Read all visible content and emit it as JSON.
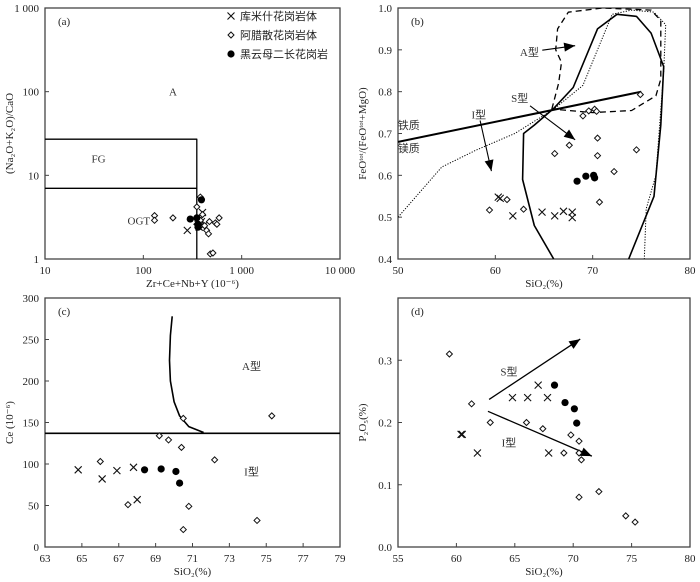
{
  "legend": {
    "entries": [
      {
        "label": "库米什花岗岩体",
        "marker": "cross"
      },
      {
        "label": "阿腊散花岗岩体",
        "marker": "diamond"
      },
      {
        "label": "黑云母二长花岗岩",
        "marker": "dot"
      }
    ]
  },
  "chart_data": [
    {
      "id": "a",
      "type": "scatter",
      "panel_label": "(a)",
      "xlabel": "Zr+Ce+Nb+Y (10⁻⁶)",
      "ylabel": "(Na₂O+K₂O)/CaO",
      "xscale": "log",
      "yscale": "log",
      "xlim": [
        10,
        10000
      ],
      "ylim": [
        1,
        1000
      ],
      "xticks": [
        {
          "v": 10,
          "label": "10"
        },
        {
          "v": 100,
          "label": "100"
        },
        {
          "v": 1000,
          "label": "1 000"
        },
        {
          "v": 10000,
          "label": "10 000"
        }
      ],
      "yticks": [
        {
          "v": 1,
          "label": "1"
        },
        {
          "v": 10,
          "label": "10"
        },
        {
          "v": 100,
          "label": "100"
        },
        {
          "v": 1000,
          "label": "1 000"
        }
      ],
      "regions": [
        {
          "label": "A",
          "x": 200,
          "y": 100
        },
        {
          "label": "FG",
          "x": 35,
          "y": 16
        },
        {
          "label": "OGT",
          "x": 90,
          "y": 2.9
        }
      ],
      "boundaries": [
        {
          "points": [
            [
              10,
              27
            ],
            [
              350,
              27
            ],
            [
              350,
              1
            ]
          ]
        },
        {
          "points": [
            [
              10,
              7
            ],
            [
              350,
              7
            ]
          ]
        }
      ],
      "series": [
        {
          "name": "库米什花岗岩体",
          "marker": "cross",
          "points": [
            [
              280,
              2.2
            ],
            [
              360,
              2.6
            ],
            [
              380,
              3.0
            ],
            [
              400,
              3.6
            ],
            [
              370,
              2.4
            ],
            [
              390,
              2.8
            ],
            [
              410,
              2.5
            ]
          ]
        },
        {
          "name": "阿腊散花岗岩体",
          "marker": "diamond",
          "points": [
            [
              130,
              3.3
            ],
            [
              130,
              2.9
            ],
            [
              200,
              3.1
            ],
            [
              350,
              4.2
            ],
            [
              380,
              5.5
            ],
            [
              400,
              3.4
            ],
            [
              420,
              2.5
            ],
            [
              440,
              2.2
            ],
            [
              460,
              2.0
            ],
            [
              470,
              2.8
            ],
            [
              540,
              2.7
            ],
            [
              560,
              2.6
            ],
            [
              590,
              3.1
            ],
            [
              480,
              1.15
            ],
            [
              510,
              1.18
            ],
            [
              350,
              2.6
            ],
            [
              380,
              2.9
            ]
          ]
        },
        {
          "name": "黑云母二长花岗岩",
          "marker": "dot",
          "points": [
            [
              300,
              3.0
            ],
            [
              350,
              3.1
            ],
            [
              360,
              2.6
            ],
            [
              360,
              2.4
            ],
            [
              390,
              5.1
            ]
          ]
        }
      ]
    },
    {
      "id": "b",
      "type": "scatter",
      "panel_label": "(b)",
      "xlabel": "SiO₂(%)",
      "ylabel": "FeOᵗᵒᵗ/(FeOᵗᵒᵗ+MgO)",
      "xlim": [
        50,
        80
      ],
      "ylim": [
        0.4,
        1.0
      ],
      "xticks": [
        {
          "v": 50,
          "label": "50"
        },
        {
          "v": 60,
          "label": "60"
        },
        {
          "v": 70,
          "label": "70"
        },
        {
          "v": 80,
          "label": "80"
        }
      ],
      "yticks": [
        {
          "v": 0.4,
          "label": "0.4"
        },
        {
          "v": 0.5,
          "label": "0.5"
        },
        {
          "v": 0.6,
          "label": "0.6"
        },
        {
          "v": 0.7,
          "label": "0.7"
        },
        {
          "v": 0.8,
          "label": "0.8"
        },
        {
          "v": 0.9,
          "label": "0.9"
        },
        {
          "v": 1.0,
          "label": "1.0"
        }
      ],
      "regions": [
        {
          "label": "A型",
          "x": 63.5,
          "y": 0.895,
          "arrow_to": [
            68.2,
            0.91
          ]
        },
        {
          "label": "S型",
          "x": 62.5,
          "y": 0.785,
          "arrow_to": [
            68.2,
            0.685
          ]
        },
        {
          "label": "I型",
          "x": 58.3,
          "y": 0.745,
          "arrow_to": [
            59.6,
            0.61
          ]
        },
        {
          "label": "铁质",
          "x": 51.1,
          "y": 0.72
        },
        {
          "label": "镁质",
          "x": 51.1,
          "y": 0.665
        }
      ],
      "boundaries": [
        {
          "name": "ferroan-magnesian",
          "style": "solid-thick",
          "points": [
            [
              50,
              0.68
            ],
            [
              75,
              0.8
            ]
          ]
        },
        {
          "name": "A-type field",
          "style": "dashed",
          "points": [
            [
              65.8,
              0.758
            ],
            [
              66.5,
              0.82
            ],
            [
              66.8,
              0.87
            ],
            [
              66.2,
              0.9
            ],
            [
              66.4,
              0.95
            ],
            [
              67.5,
              0.99
            ],
            [
              71,
              1.0
            ],
            [
              76,
              0.995
            ],
            [
              77,
              0.97
            ],
            [
              77,
              0.83
            ],
            [
              76.5,
              0.79
            ],
            [
              74,
              0.755
            ],
            [
              70,
              0.75
            ],
            [
              66,
              0.758
            ]
          ]
        },
        {
          "name": "I-type field",
          "style": "solid",
          "points": [
            [
              66,
              0.4
            ],
            [
              64,
              0.48
            ],
            [
              62.8,
              0.59
            ],
            [
              62.9,
              0.7
            ],
            [
              64,
              0.72
            ],
            [
              66,
              0.76
            ],
            [
              68,
              0.81
            ],
            [
              70.5,
              0.95
            ],
            [
              72.5,
              0.985
            ],
            [
              74.5,
              0.98
            ],
            [
              76,
              0.94
            ],
            [
              77.3,
              0.86
            ],
            [
              77,
              0.72
            ],
            [
              76.3,
              0.55
            ],
            [
              73.7,
              0.4
            ]
          ]
        },
        {
          "name": "S-type field",
          "style": "dotted",
          "points": [
            [
              50,
              0.5
            ],
            [
              54.5,
              0.62
            ],
            [
              58,
              0.66
            ],
            [
              62,
              0.7
            ],
            [
              66,
              0.758
            ],
            [
              69,
              0.815
            ],
            [
              72,
              0.985
            ],
            [
              74,
              0.995
            ],
            [
              76.3,
              0.99
            ],
            [
              77.5,
              0.96
            ],
            [
              77.3,
              0.85
            ],
            [
              76.5,
              0.6
            ],
            [
              75.5,
              0.52
            ],
            [
              75.3,
              0.4
            ]
          ]
        }
      ],
      "series": [
        {
          "name": "库米什花岗岩体",
          "marker": "cross",
          "points": [
            [
              60.3,
              0.548
            ],
            [
              60.5,
              0.545
            ],
            [
              61.8,
              0.503
            ],
            [
              64.8,
              0.512
            ],
            [
              66.1,
              0.503
            ],
            [
              67,
              0.514
            ],
            [
              67.9,
              0.512
            ],
            [
              67.9,
              0.499
            ]
          ]
        },
        {
          "name": "阿腊散花岗岩体",
          "marker": "diamond",
          "points": [
            [
              59.4,
              0.517
            ],
            [
              61.2,
              0.542
            ],
            [
              62.9,
              0.519
            ],
            [
              66.1,
              0.652
            ],
            [
              67.6,
              0.672
            ],
            [
              69,
              0.742
            ],
            [
              69.6,
              0.754
            ],
            [
              70.2,
              0.758
            ],
            [
              70.5,
              0.689
            ],
            [
              70.5,
              0.647
            ],
            [
              70.7,
              0.536
            ],
            [
              72.2,
              0.609
            ],
            [
              74.5,
              0.661
            ],
            [
              74.9,
              0.793
            ],
            [
              70.4,
              0.753
            ]
          ]
        },
        {
          "name": "黑云母二长花岗岩",
          "marker": "dot",
          "points": [
            [
              68.4,
              0.586
            ],
            [
              69.3,
              0.598
            ],
            [
              70.1,
              0.6
            ],
            [
              70.2,
              0.594
            ]
          ]
        }
      ]
    },
    {
      "id": "c",
      "type": "scatter",
      "panel_label": "(c)",
      "xlabel": "SiO₂(%)",
      "ylabel": "Ce (10⁻⁶)",
      "xlim": [
        63,
        79
      ],
      "ylim": [
        0,
        300
      ],
      "xticks": [
        {
          "v": 63,
          "label": "63"
        },
        {
          "v": 65,
          "label": "65"
        },
        {
          "v": 67,
          "label": "67"
        },
        {
          "v": 69,
          "label": "69"
        },
        {
          "v": 71,
          "label": "71"
        },
        {
          "v": 73,
          "label": "73"
        },
        {
          "v": 75,
          "label": "75"
        },
        {
          "v": 77,
          "label": "77"
        },
        {
          "v": 79,
          "label": "79"
        }
      ],
      "yticks": [
        {
          "v": 0,
          "label": "0"
        },
        {
          "v": 50,
          "label": "50"
        },
        {
          "v": 100,
          "label": "100"
        },
        {
          "v": 150,
          "label": "150"
        },
        {
          "v": 200,
          "label": "200"
        },
        {
          "v": 250,
          "label": "250"
        },
        {
          "v": 300,
          "label": "300"
        }
      ],
      "regions": [
        {
          "label": "A型",
          "x": 74.2,
          "y": 218
        },
        {
          "label": "I型",
          "x": 74.2,
          "y": 91
        }
      ],
      "boundaries": [
        {
          "style": "solid",
          "points": [
            [
              63,
              137
            ],
            [
              79,
              137
            ]
          ]
        },
        {
          "style": "solid",
          "points": [
            [
              69.9,
              278
            ],
            [
              69.8,
              255
            ],
            [
              69.75,
              225
            ],
            [
              69.8,
              200
            ],
            [
              70.0,
              175
            ],
            [
              70.3,
              158
            ],
            [
              70.8,
              145
            ],
            [
              71.6,
              138
            ]
          ]
        }
      ],
      "series": [
        {
          "name": "库米什花岗岩体",
          "marker": "cross",
          "points": [
            [
              64.8,
              93
            ],
            [
              66.1,
              82
            ],
            [
              66.9,
              92
            ],
            [
              67.8,
              96
            ],
            [
              68,
              57
            ]
          ]
        },
        {
          "name": "阿腊散花岗岩体",
          "marker": "diamond",
          "points": [
            [
              66,
              103
            ],
            [
              67.5,
              51
            ],
            [
              69.2,
              134
            ],
            [
              69.7,
              129
            ],
            [
              70.5,
              155
            ],
            [
              70.4,
              120
            ],
            [
              70.8,
              49
            ],
            [
              70.5,
              21
            ],
            [
              72.2,
              105
            ],
            [
              74.5,
              32
            ],
            [
              75.3,
              158
            ]
          ]
        },
        {
          "name": "黑云母二长花岗岩",
          "marker": "dot",
          "points": [
            [
              68.4,
              93
            ],
            [
              69.3,
              94
            ],
            [
              70.1,
              91
            ],
            [
              70.3,
              77
            ]
          ]
        }
      ]
    },
    {
      "id": "d",
      "type": "scatter",
      "panel_label": "(d)",
      "xlabel": "SiO₂(%)",
      "ylabel": "P₂O₅(%)",
      "xlim": [
        55,
        80
      ],
      "ylim": [
        0.0,
        0.4
      ],
      "xticks": [
        {
          "v": 55,
          "label": "55"
        },
        {
          "v": 60,
          "label": "60"
        },
        {
          "v": 65,
          "label": "65"
        },
        {
          "v": 70,
          "label": "70"
        },
        {
          "v": 75,
          "label": "75"
        },
        {
          "v": 80,
          "label": "80"
        }
      ],
      "yticks": [
        {
          "v": 0.0,
          "label": "0.0"
        },
        {
          "v": 0.1,
          "label": "0.1"
        },
        {
          "v": 0.2,
          "label": "0.2"
        },
        {
          "v": 0.3,
          "label": "0.3"
        }
      ],
      "regions": [
        {
          "label": "S型",
          "x": 64.5,
          "y": 0.282
        },
        {
          "label": "I型",
          "x": 64.5,
          "y": 0.168
        }
      ],
      "arrows": [
        {
          "from": [
            62.8,
            0.237
          ],
          "to": [
            70.6,
            0.334
          ]
        },
        {
          "from": [
            62.7,
            0.218
          ],
          "to": [
            71.6,
            0.146
          ]
        }
      ],
      "series": [
        {
          "name": "库米什花岗岩体",
          "marker": "cross",
          "points": [
            [
              60.4,
              0.181
            ],
            [
              60.5,
              0.181
            ],
            [
              61.8,
              0.151
            ],
            [
              64.8,
              0.24
            ],
            [
              66.1,
              0.24
            ],
            [
              67,
              0.26
            ],
            [
              67.8,
              0.24
            ],
            [
              67.9,
              0.151
            ]
          ]
        },
        {
          "name": "阿腊散花岗岩体",
          "marker": "diamond",
          "points": [
            [
              59.4,
              0.31
            ],
            [
              61.3,
              0.23
            ],
            [
              62.9,
              0.2
            ],
            [
              66,
              0.2
            ],
            [
              67.4,
              0.19
            ],
            [
              69.2,
              0.151
            ],
            [
              69.8,
              0.18
            ],
            [
              70.5,
              0.17
            ],
            [
              70.5,
              0.151
            ],
            [
              70.7,
              0.14
            ],
            [
              70.5,
              0.08
            ],
            [
              72.2,
              0.089
            ],
            [
              74.5,
              0.05
            ],
            [
              75.3,
              0.04
            ]
          ]
        },
        {
          "name": "黑云母二长花岗岩",
          "marker": "dot",
          "points": [
            [
              68.4,
              0.26
            ],
            [
              69.3,
              0.232
            ],
            [
              70.1,
              0.222
            ],
            [
              70.3,
              0.199
            ]
          ]
        }
      ]
    }
  ]
}
